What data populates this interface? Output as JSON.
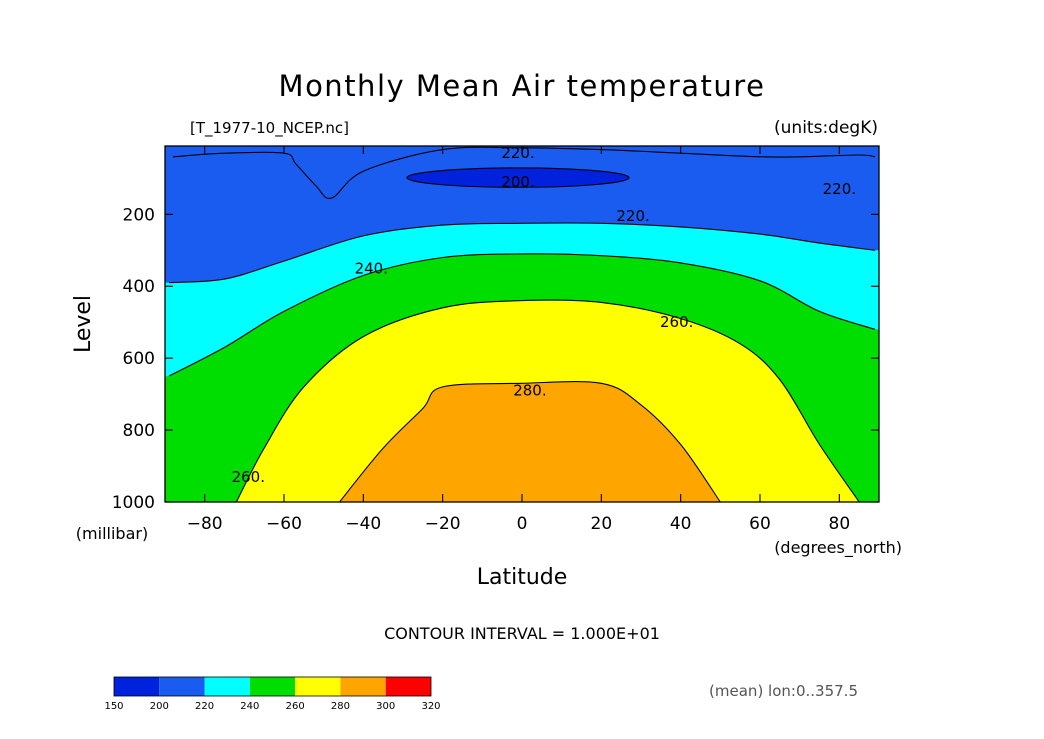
{
  "chart_data": {
    "type": "filled_contour",
    "title": "Monthly Mean Air temperature",
    "source_file": "[T_1977-10_NCEP.nc]",
    "units": "(units:degK)",
    "xlabel": "Latitude",
    "x_units": "(degrees_north)",
    "ylabel": "Level",
    "y_units": "(millibar)",
    "xlim": [
      -90,
      90
    ],
    "ylim": [
      1000,
      10
    ],
    "x_ticks": [
      -80,
      -60,
      -40,
      -20,
      0,
      20,
      40,
      60,
      80
    ],
    "x_tick_labels": [
      "−80",
      "−60",
      "−40",
      "−20",
      "0",
      "20",
      "40",
      "60",
      "80"
    ],
    "y_ticks": [
      200,
      400,
      600,
      800,
      1000
    ],
    "y_tick_labels": [
      "200",
      "400",
      "600",
      "800",
      "1000"
    ],
    "contour_interval_text": "CONTOUR INTERVAL = 1.000E+01",
    "footer_note": "(mean) lon:0..357.5",
    "contour_labels": [
      {
        "text": "220.",
        "lat": -1,
        "level": 30
      },
      {
        "text": "200.",
        "lat": -1,
        "level": 110
      },
      {
        "text": "220.",
        "lat": 28,
        "level": 205
      },
      {
        "text": "220.",
        "lat": 80,
        "level": 130
      },
      {
        "text": "240.",
        "lat": -38,
        "level": 350
      },
      {
        "text": "260.",
        "lat": 39,
        "level": 500
      },
      {
        "text": "280.",
        "lat": 2,
        "level": 690
      },
      {
        "text": "260.",
        "lat": -69,
        "level": 930
      }
    ],
    "colorbar": {
      "bounds": [
        150,
        200,
        220,
        240,
        260,
        280,
        300,
        320
      ],
      "labels": [
        "150",
        "200",
        "220",
        "240",
        "260",
        "280",
        "300",
        "320"
      ],
      "colors": [
        "#0022dd",
        "#1a5cf0",
        "#00ffff",
        "#00dd00",
        "#ffff00",
        "#ffa500",
        "#ff0000"
      ]
    },
    "levels": [
      {
        "value": 200,
        "color": "#1a5cf0",
        "boundary_lat": [
          -88,
          -75,
          -60,
          -57,
          -52,
          -48,
          -40,
          -20,
          0,
          20,
          40,
          60,
          70,
          85,
          89
        ],
        "boundary_level": [
          40,
          30,
          30,
          60,
          120,
          155,
          80,
          20,
          15,
          20,
          30,
          40,
          40,
          35,
          40
        ]
      },
      {
        "value": 220,
        "color": "#00ffff",
        "boundary_lat": [
          -89,
          -75,
          -60,
          -40,
          -20,
          0,
          20,
          40,
          60,
          75,
          89
        ],
        "boundary_level": [
          390,
          380,
          330,
          260,
          230,
          225,
          225,
          235,
          255,
          280,
          300
        ]
      },
      {
        "value": 240,
        "color": "#00dd00",
        "boundary_lat": [
          -89,
          -75,
          -60,
          -40,
          -20,
          0,
          20,
          40,
          60,
          75,
          89
        ],
        "boundary_level": [
          650,
          570,
          470,
          370,
          320,
          310,
          315,
          335,
          385,
          470,
          520
        ]
      },
      {
        "value": 260,
        "color": "#ffff00",
        "boundary_lat": [
          -72,
          -65,
          -55,
          -40,
          -20,
          0,
          20,
          40,
          55,
          65,
          75,
          85
        ],
        "boundary_level": [
          1000,
          850,
          680,
          540,
          460,
          440,
          445,
          490,
          560,
          660,
          840,
          1000
        ]
      },
      {
        "value": 280,
        "color": "#ffa500",
        "boundary_lat": [
          -46,
          -35,
          -25,
          -20,
          0,
          20,
          30,
          40,
          50
        ],
        "boundary_level": [
          1000,
          850,
          740,
          680,
          670,
          670,
          730,
          840,
          1000
        ]
      }
    ],
    "minimum_region": {
      "value": 200,
      "color": "#0022dd",
      "center_lat": -1,
      "center_level": 98,
      "half_width_lat": 28,
      "half_height_level": 27
    }
  }
}
